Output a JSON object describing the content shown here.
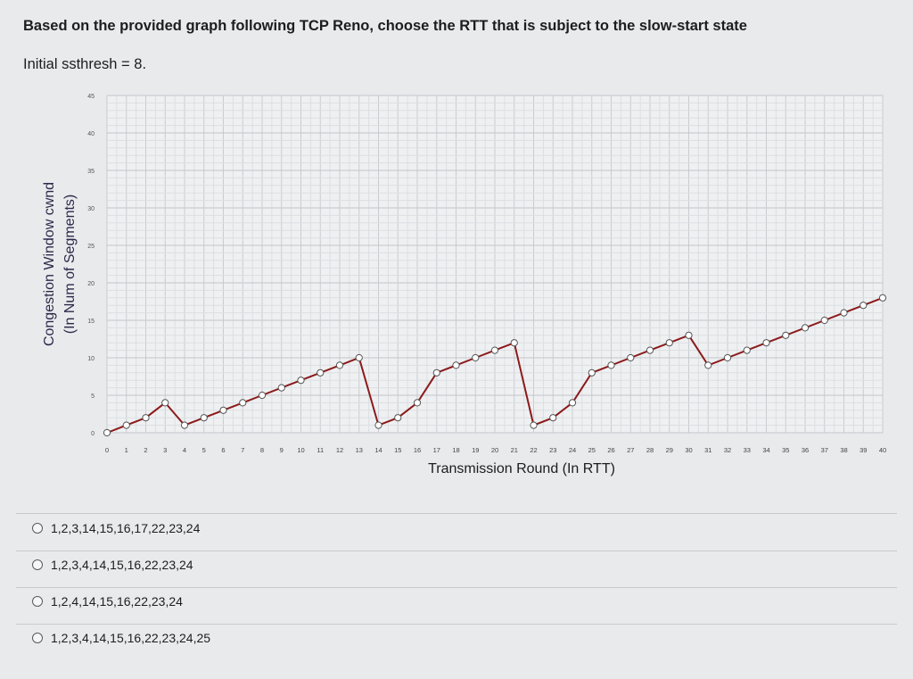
{
  "question": {
    "title": "Based on the provided graph following TCP Reno, choose the RTT that is subject to the slow-start state",
    "subtitle": "Initial ssthresh = 8."
  },
  "chart_data": {
    "type": "line",
    "ylabel_line1": "Congestion Window cwnd",
    "ylabel_line2": "(In Num of Segments)",
    "xlabel": "Transmission Round (In RTT)",
    "ylim": [
      0,
      45
    ],
    "yticks": [
      0,
      5,
      10,
      15,
      20,
      25,
      30,
      35,
      40,
      45
    ],
    "xlim": [
      0,
      40
    ],
    "xticks": [
      0,
      1,
      2,
      3,
      4,
      5,
      6,
      7,
      8,
      9,
      10,
      11,
      12,
      13,
      14,
      15,
      16,
      17,
      18,
      19,
      20,
      21,
      22,
      23,
      24,
      25,
      26,
      27,
      28,
      29,
      30,
      31,
      32,
      33,
      34,
      35,
      36,
      37,
      38,
      39,
      40
    ],
    "grid": true,
    "line_color": "#8b1a1a",
    "marker_color": "#ffffff",
    "segments": [
      [
        [
          0,
          0
        ],
        [
          1,
          1
        ],
        [
          2,
          2
        ],
        [
          3,
          4
        ]
      ],
      [
        [
          4,
          1
        ],
        [
          5,
          2
        ],
        [
          6,
          3
        ],
        [
          7,
          4
        ],
        [
          8,
          5
        ],
        [
          9,
          6
        ],
        [
          10,
          7
        ],
        [
          11,
          8
        ],
        [
          12,
          9
        ],
        [
          13,
          10
        ]
      ],
      [
        [
          14,
          1
        ],
        [
          15,
          2
        ],
        [
          16,
          4
        ],
        [
          17,
          8
        ],
        [
          18,
          9
        ],
        [
          19,
          10
        ],
        [
          20,
          11
        ],
        [
          21,
          12
        ]
      ],
      [
        [
          22,
          1
        ],
        [
          23,
          2
        ],
        [
          24,
          4
        ],
        [
          25,
          8
        ],
        [
          26,
          9
        ],
        [
          27,
          10
        ],
        [
          28,
          11
        ],
        [
          29,
          12
        ],
        [
          30,
          13
        ]
      ],
      [
        [
          31,
          9
        ],
        [
          32,
          10
        ],
        [
          33,
          11
        ],
        [
          34,
          12
        ],
        [
          35,
          13
        ],
        [
          36,
          14
        ],
        [
          37,
          15
        ],
        [
          38,
          16
        ],
        [
          39,
          17
        ],
        [
          40,
          18
        ]
      ]
    ]
  },
  "options": [
    {
      "label": "1,2,3,14,15,16,17,22,23,24"
    },
    {
      "label": "1,2,3,4,14,15,16,22,23,24"
    },
    {
      "label": "1,2,4,14,15,16,22,23,24"
    },
    {
      "label": "1,2,3,4,14,15,16,22,23,24,25"
    }
  ]
}
